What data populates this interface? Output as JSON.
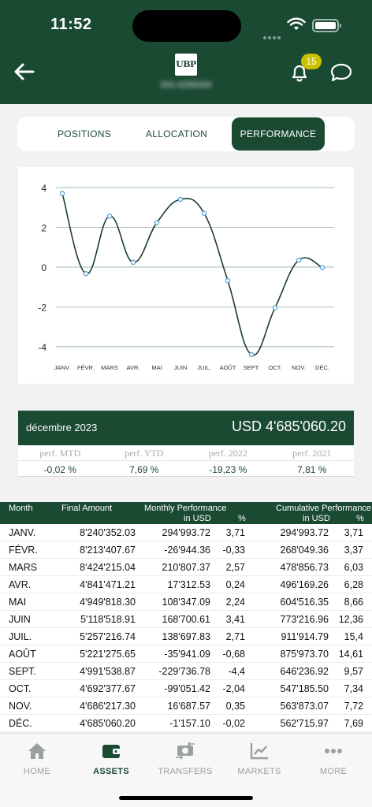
{
  "status_bar": {
    "time": "11:52"
  },
  "header": {
    "logo_text": "UBP",
    "account_id": "001-0290034",
    "notification_count": "15"
  },
  "tabs": [
    {
      "label": "POSITIONS",
      "active": false
    },
    {
      "label": "ALLOCATION",
      "active": false
    },
    {
      "label": "PERFORMANCE",
      "active": true
    }
  ],
  "chart_data": {
    "type": "line",
    "categories": [
      "JANV.",
      "FÉVR.",
      "MARS",
      "AVR.",
      "MAI",
      "JUIN",
      "JUIL.",
      "AOÛT",
      "SEPT.",
      "OCT.",
      "NOV.",
      "DÉC."
    ],
    "values": [
      3.71,
      -0.33,
      2.57,
      0.24,
      2.24,
      3.41,
      2.71,
      -0.68,
      -4.4,
      -2.04,
      0.35,
      -0.02
    ],
    "yticks": [
      4,
      2,
      0,
      -2,
      -4
    ],
    "ylim": [
      -4.8,
      4.4
    ],
    "grid": true,
    "line_color": "#1b3d2c",
    "point_color": "#5aa0d8"
  },
  "summary": {
    "date": "décembre 2023",
    "total": "USD 4'685'060.20",
    "labels": [
      "perf. MTD",
      "perf. YTD",
      "perf. 2022",
      "perf. 2021"
    ],
    "values": [
      "-0,02 %",
      "7,69 %",
      "-19,23 %",
      "7,81 %"
    ]
  },
  "table": {
    "headers": {
      "month": "Month",
      "final_amount": "Final Amount",
      "monthly": "Monthly Performance",
      "cumulative": "Cumulative Performance",
      "in_usd": "in USD",
      "pct": "%"
    },
    "rows": [
      [
        "JANV.",
        "8'240'352.03",
        "294'993.72",
        "3,71",
        "294'993.72",
        "3,71"
      ],
      [
        "FÉVR.",
        "8'213'407.67",
        "-26'944.36",
        "-0,33",
        "268'049.36",
        "3,37"
      ],
      [
        "MARS",
        "8'424'215.04",
        "210'807.37",
        "2,57",
        "478'856.73",
        "6,03"
      ],
      [
        "AVR.",
        "4'841'471.21",
        "17'312.53",
        "0,24",
        "496'169.26",
        "6,28"
      ],
      [
        "MAI",
        "4'949'818.30",
        "108'347.09",
        "2,24",
        "604'516.35",
        "8,66"
      ],
      [
        "JUIN",
        "5'118'518.91",
        "168'700.61",
        "3,41",
        "773'216.96",
        "12,36"
      ],
      [
        "JUIL.",
        "5'257'216.74",
        "138'697.83",
        "2,71",
        "911'914.79",
        "15,4"
      ],
      [
        "AOÛT",
        "5'221'275.65",
        "-35'941.09",
        "-0,68",
        "875'973.70",
        "14,61"
      ],
      [
        "SEPT.",
        "4'991'538.87",
        "-229'736.78",
        "-4,4",
        "646'236.92",
        "9,57"
      ],
      [
        "OCT.",
        "4'692'377.67",
        "-99'051.42",
        "-2,04",
        "547'185.50",
        "7,34"
      ],
      [
        "NOV.",
        "4'686'217.30",
        "16'687.57",
        "0,35",
        "563'873.07",
        "7,72"
      ],
      [
        "DÉC.",
        "4'685'060.20",
        "-1'157.10",
        "-0,02",
        "562'715.97",
        "7,69"
      ]
    ]
  },
  "tabbar": [
    {
      "label": "HOME",
      "icon": "home-icon",
      "active": false
    },
    {
      "label": "ASSETS",
      "icon": "wallet-icon",
      "active": true
    },
    {
      "label": "TRANSFERS",
      "icon": "transfers-icon",
      "active": false
    },
    {
      "label": "MARKETS",
      "icon": "markets-icon",
      "active": false
    },
    {
      "label": "MORE",
      "icon": "more-icon",
      "active": false
    }
  ],
  "colors": {
    "brand": "#1b4a33",
    "badge": "#c9c100",
    "chart_point": "#5aa0d8"
  }
}
